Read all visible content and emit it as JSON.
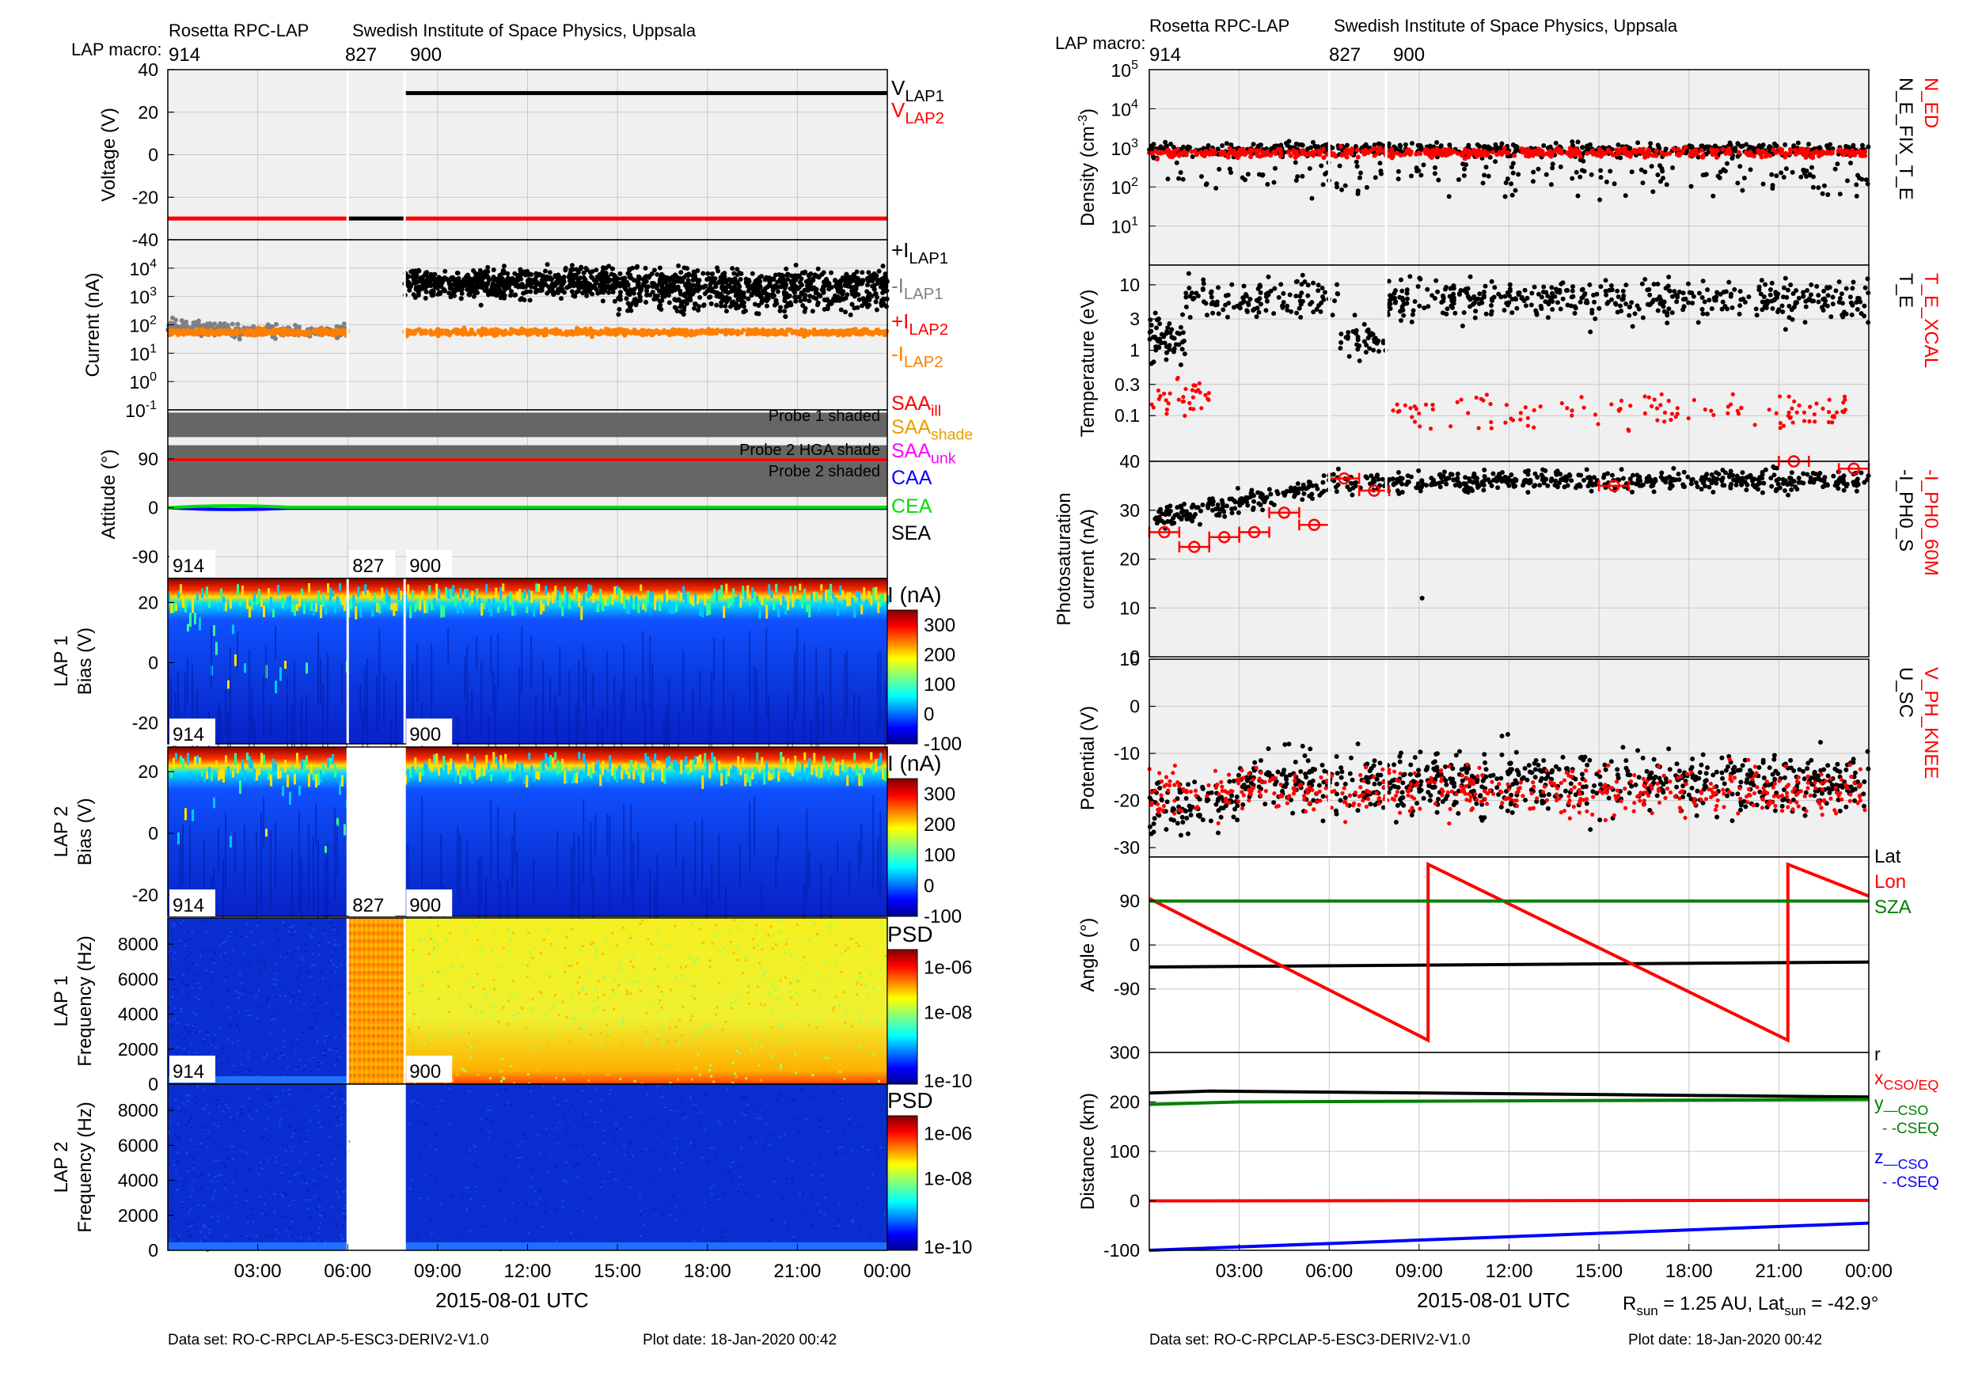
{
  "header": {
    "left_title": "Rosetta RPC-LAP",
    "left_institute": "Swedish Institute of Space Physics, Uppsala",
    "right_title": "Rosetta RPC-LAP",
    "right_institute": "Swedish Institute of Space Physics, Uppsala",
    "macro_label": "LAP macro:",
    "macros": [
      "914",
      "827",
      "900"
    ]
  },
  "footer": {
    "left_dataset": "Data set: RO-C-RPCLAP-5-ESC3-DERIV2-V1.0",
    "left_plotdate": "Plot date: 18-Jan-2020 00:42",
    "right_dataset": "Data set: RO-C-RPCLAP-5-ESC3-DERIV2-V1.0",
    "right_plotdate": "Plot date: 18-Jan-2020 00:42",
    "rsun": "R_sun = 1.25 AU, Lat_sun = -42.9°"
  },
  "xaxis": {
    "ticks": [
      "03:00",
      "06:00",
      "09:00",
      "12:00",
      "15:00",
      "18:00",
      "21:00",
      "00:00"
    ],
    "label_left": "2015-08-01 UTC",
    "label_right": "2015-08-01 UTC"
  },
  "colors": {
    "black": "#000000",
    "red": "#ff0000",
    "orange": "#ff7f00",
    "gray": "#808080",
    "green": "#008000",
    "blue": "#0000ff",
    "magenta": "#ff00ff",
    "gold": "#e6a000",
    "lime": "#00dd00",
    "shade": "#666666",
    "panel_bg": "#f0f0f0"
  },
  "chart_data": [
    {
      "type": "line",
      "panel": "voltage",
      "ylabel": "Voltage (V)",
      "ylim": [
        -40,
        40
      ],
      "yticks": [
        40,
        20,
        0,
        -20,
        -40
      ],
      "series": [
        {
          "name": "V_LAP1",
          "legend": "V",
          "sub": "LAP1",
          "color": "#000000",
          "segments": [
            [
              6.0,
              7.9,
              -30
            ],
            [
              7.9,
              24,
              29
            ]
          ]
        },
        {
          "name": "V_LAP2",
          "legend": "V",
          "sub": "LAP2",
          "color": "#ff0000",
          "segments": [
            [
              0,
              6.0,
              -30
            ],
            [
              7.9,
              24,
              -30
            ]
          ]
        }
      ]
    },
    {
      "type": "scatter",
      "panel": "current",
      "ylabel": "Current (nA)",
      "yscale": "log",
      "ylim": [
        0.1,
        100000
      ],
      "ytick_exps": [
        4,
        3,
        2,
        1,
        0,
        -1
      ],
      "series": [
        {
          "name": "+I_LAP1",
          "legend": "+I",
          "sub": "LAP1",
          "color": "#000000",
          "typical": 3000
        },
        {
          "name": "-I_LAP1",
          "legend": "-I",
          "sub": "LAP1",
          "color": "#808080",
          "typical": 60
        },
        {
          "name": "+I_LAP2",
          "legend": "+I",
          "sub": "LAP2",
          "color": "#ff0000"
        },
        {
          "name": "-I_LAP2",
          "legend": "-I",
          "sub": "LAP2",
          "color": "#ff7f00",
          "typical": 60
        }
      ]
    },
    {
      "type": "line",
      "panel": "attitude",
      "ylabel": "Attitude (°)",
      "ylim": [
        -130,
        180
      ],
      "yticks": [
        90,
        0,
        -90
      ],
      "bands": [
        {
          "label": "Probe 1 shaded",
          "ymin": 130,
          "ymax": 175
        },
        {
          "label": "Probe 2 HGA shade",
          "ymin": 90,
          "ymax": 115
        },
        {
          "label": "Probe 2 shaded",
          "ymin": 20,
          "ymax": 85
        }
      ],
      "series": [
        {
          "name": "SAA_ill",
          "legend": "SAA",
          "sub": "ill",
          "color": "#ff0000",
          "value": 88
        },
        {
          "name": "SAA_shade",
          "legend": "SAA",
          "sub": "shade",
          "color": "#e6a000"
        },
        {
          "name": "SAA_unk",
          "legend": "SAA",
          "sub": "unk",
          "color": "#ff00ff"
        },
        {
          "name": "CAA",
          "legend": "CAA",
          "color": "#0000ff",
          "value": -2
        },
        {
          "name": "CEA",
          "legend": "CEA",
          "color": "#00dd00",
          "value": 0
        },
        {
          "name": "SEA",
          "legend": "SEA",
          "color": "#000000"
        }
      ]
    },
    {
      "type": "heatmap",
      "panel": "lap1_bias",
      "ylabel": "LAP 1",
      "ylabel2": "Bias (V)",
      "ylim": [
        -27,
        28
      ],
      "yticks": [
        20,
        0,
        -20
      ],
      "colorbar_label": "I (nA)",
      "clim": [
        -100,
        350
      ],
      "cticks": [
        300,
        200,
        100,
        0,
        -100
      ],
      "macros": [
        "914",
        "827",
        "900"
      ]
    },
    {
      "type": "heatmap",
      "panel": "lap2_bias",
      "ylabel": "LAP 2",
      "ylabel2": "Bias (V)",
      "ylim": [
        -27,
        28
      ],
      "yticks": [
        20,
        0,
        -20
      ],
      "colorbar_label": "I (nA)",
      "clim": [
        -100,
        350
      ],
      "cticks": [
        300,
        200,
        100,
        0,
        -100
      ],
      "macros": [
        "914",
        "900"
      ]
    },
    {
      "type": "heatmap",
      "panel": "lap1_freq",
      "ylabel": "LAP 1",
      "ylabel2": "Frequency (Hz)",
      "ylim": [
        0,
        9500
      ],
      "yticks": [
        8000,
        6000,
        4000,
        2000,
        0
      ],
      "colorbar_label": "PSD",
      "cticks": [
        "1e-06",
        "1e-08",
        "1e-10"
      ],
      "macros": [
        "914",
        "827",
        "900"
      ]
    },
    {
      "type": "heatmap",
      "panel": "lap2_freq",
      "ylabel": "LAP 2",
      "ylabel2": "Frequency (Hz)",
      "ylim": [
        0,
        9500
      ],
      "yticks": [
        8000,
        6000,
        4000,
        2000,
        0
      ],
      "colorbar_label": "PSD",
      "cticks": [
        "1e-06",
        "1e-08",
        "1e-10"
      ],
      "macros": [
        "914",
        "900"
      ]
    },
    {
      "type": "scatter",
      "panel": "density",
      "ylabel": "Density (cm",
      "ylabel_sup": "-3",
      "ylabel_end": ")",
      "yscale": "log",
      "ylim": [
        1,
        100000
      ],
      "ytick_exps": [
        5,
        4,
        3,
        2,
        1
      ],
      "series": [
        {
          "name": "N_ED",
          "color": "#ff0000",
          "typical": 900
        },
        {
          "name": "N_E_FIX_T_E",
          "color": "#000000",
          "typical": 700
        }
      ]
    },
    {
      "type": "scatter",
      "panel": "temperature",
      "ylabel": "Temperature (eV)",
      "yscale": "log",
      "ylim": [
        0.02,
        20
      ],
      "yticks": [
        10,
        3,
        1,
        0.3,
        0.1
      ],
      "series": [
        {
          "name": "T_E_XCAL",
          "color": "#ff0000",
          "typical": 0.12
        },
        {
          "name": "T_E",
          "color": "#000000",
          "typical": 6
        }
      ]
    },
    {
      "type": "scatter",
      "panel": "photosaturation",
      "ylabel": "Photosaturation",
      "ylabel2": "current (nA)",
      "ylim": [
        0,
        40
      ],
      "yticks": [
        40,
        30,
        20,
        10,
        0
      ],
      "series": [
        {
          "name": "-I_PH0_60M",
          "color": "#ff0000",
          "points": [
            [
              0.5,
              25.5
            ],
            [
              1.5,
              22.5
            ],
            [
              2.5,
              24.5
            ],
            [
              3.5,
              25.5
            ],
            [
              4.5,
              29.5
            ],
            [
              5.5,
              27.0
            ],
            [
              6.5,
              36.5
            ],
            [
              7.5,
              34.0
            ],
            [
              15.5,
              35.0
            ],
            [
              21.5,
              40.0
            ],
            [
              23.5,
              38.5
            ]
          ]
        },
        {
          "name": "-I_PH0_S",
          "color": "#000000",
          "typical": 35
        }
      ]
    },
    {
      "type": "scatter",
      "panel": "potential",
      "ylabel": "Potential (V)",
      "ylim": [
        -32,
        10
      ],
      "yticks": [
        10,
        0,
        -10,
        -20,
        -30
      ],
      "series": [
        {
          "name": "V_PH_KNEE",
          "color": "#ff0000",
          "typical": -18
        },
        {
          "name": "U_SC",
          "color": "#000000",
          "typical": -16
        }
      ]
    },
    {
      "type": "line",
      "panel": "angle",
      "ylabel": "Angle (°)",
      "ylim": [
        -220,
        180
      ],
      "yticks": [
        90,
        0,
        -90
      ],
      "ytick_bottom_label": "300",
      "series": [
        {
          "name": "Lat",
          "color": "#000000",
          "points": [
            [
              0,
              -45
            ],
            [
              24,
              -35
            ]
          ]
        },
        {
          "name": "Lon",
          "color": "#ff0000",
          "points": [
            [
              0,
              95
            ],
            [
              9.3,
              -195
            ],
            [
              9.3,
              165
            ],
            [
              21.3,
              -195
            ],
            [
              21.3,
              165
            ],
            [
              24,
              100
            ]
          ]
        },
        {
          "name": "SZA",
          "color": "#008000",
          "points": [
            [
              0,
              90
            ],
            [
              24,
              90
            ]
          ]
        }
      ]
    },
    {
      "type": "line",
      "panel": "distance",
      "ylabel": "Distance (km)",
      "ylim": [
        -100,
        300
      ],
      "yticks": [
        200,
        100,
        0,
        -100
      ],
      "series": [
        {
          "name": "r",
          "legend": "r",
          "color": "#000000",
          "points": [
            [
              0,
              218
            ],
            [
              2,
              222
            ],
            [
              24,
              210
            ]
          ]
        },
        {
          "name": "x_CSO/EQ",
          "legend": "x",
          "sub": "CSO/EQ",
          "color": "#ff0000",
          "points": [
            [
              0,
              0
            ],
            [
              24,
              1
            ]
          ]
        },
        {
          "name": "y_CSO",
          "legend": "y",
          "sub": "—CSO",
          "legend2": "- -CSEQ",
          "color": "#008000",
          "points": [
            [
              0,
              195
            ],
            [
              3,
              200
            ],
            [
              24,
              205
            ]
          ]
        },
        {
          "name": "z_CSO",
          "legend": "z",
          "sub": "—CSO",
          "legend2": "- -CSEQ",
          "color": "#0000ff",
          "points": [
            [
              0,
              -100
            ],
            [
              24,
              -45
            ]
          ]
        }
      ]
    }
  ]
}
